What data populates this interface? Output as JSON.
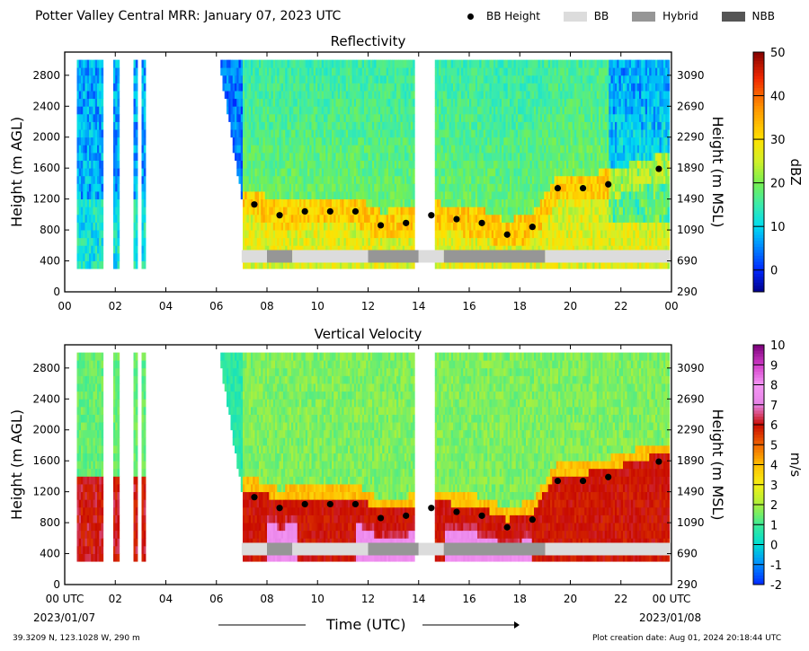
{
  "page": {
    "title": "Potter Valley Central MRR:  January 07, 2023 UTC",
    "legend": [
      {
        "label": "BB Height",
        "kind": "marker",
        "color": "#000000"
      },
      {
        "label": "BB",
        "kind": "box",
        "color": "#dcdcdc"
      },
      {
        "label": "Hybrid",
        "kind": "box",
        "color": "#969696"
      },
      {
        "label": "NBB",
        "kind": "box",
        "color": "#555555"
      }
    ],
    "xlabel": "Time (UTC)",
    "x_start_label": "00 UTC",
    "x_start_date": "2023/01/07",
    "x_end_label": "00 UTC",
    "x_end_date": "2023/01/08",
    "footer_left": "39.3209 N, 123.1028 W, 290 m",
    "footer_right": "Plot creation date: Aug 01, 2024 20:18:44 UTC"
  },
  "chart_data": [
    {
      "type": "heatmap",
      "title": "Reflectivity",
      "ylabel": "Height (m AGL)",
      "y2label": "Height (m MSL)",
      "colorbar_label": "dBZ",
      "colorbar_ticks": [
        "50",
        "40",
        "30",
        "20",
        "10",
        "0"
      ],
      "colorbar_range": [
        -5,
        50
      ],
      "xlim": [
        0,
        24
      ],
      "ylim": [
        0,
        3100
      ],
      "xticks": [
        "00",
        "02",
        "04",
        "06",
        "08",
        "10",
        "12",
        "14",
        "16",
        "18",
        "20",
        "22",
        "00"
      ],
      "yticks": [
        "0",
        "400",
        "800",
        "1200",
        "1600",
        "2000",
        "2400",
        "2800"
      ],
      "y2ticks": [
        "290",
        "690",
        "1090",
        "1490",
        "1890",
        "2290",
        "2690",
        "3090"
      ],
      "bb_height": {
        "x": [
          7.5,
          8.5,
          9.5,
          10.5,
          11.5,
          12.5,
          13.5,
          14.5,
          15.5,
          16.5,
          17.5,
          18.5,
          19.5,
          20.5,
          21.5,
          23.5
        ],
        "y": [
          1130,
          990,
          1040,
          1040,
          1040,
          860,
          890,
          990,
          940,
          890,
          740,
          840,
          1340,
          1340,
          1390,
          1590
        ]
      },
      "bb_classification": [
        {
          "start": 7.0,
          "end": 8.0,
          "class": "BB"
        },
        {
          "start": 8.0,
          "end": 9.0,
          "class": "Hybrid"
        },
        {
          "start": 9.0,
          "end": 12.0,
          "class": "BB"
        },
        {
          "start": 12.0,
          "end": 14.0,
          "class": "Hybrid"
        },
        {
          "start": 14.0,
          "end": 15.0,
          "class": "BB"
        },
        {
          "start": 15.0,
          "end": 19.0,
          "class": "Hybrid"
        },
        {
          "start": 19.0,
          "end": 24.0,
          "class": "BB"
        }
      ]
    },
    {
      "type": "heatmap",
      "title": "Vertical Velocity",
      "ylabel": "Height (m AGL)",
      "y2label": "Height (m MSL)",
      "colorbar_label": "m/s",
      "colorbar_ticks": [
        "10",
        "9",
        "8",
        "7",
        "6",
        "5",
        "4",
        "3",
        "2",
        "1",
        "0",
        "-1",
        "-2"
      ],
      "colorbar_range": [
        -2,
        10
      ],
      "xlim": [
        0,
        24
      ],
      "ylim": [
        0,
        3100
      ],
      "xticks": [
        "00 UTC",
        "02",
        "04",
        "06",
        "08",
        "10",
        "12",
        "14",
        "16",
        "18",
        "20",
        "22",
        "00 UTC"
      ],
      "yticks": [
        "0",
        "400",
        "800",
        "1200",
        "1600",
        "2000",
        "2400",
        "2800"
      ],
      "y2ticks": [
        "290",
        "690",
        "1090",
        "1490",
        "1890",
        "2290",
        "2690",
        "3090"
      ],
      "bb_height": {
        "x": [
          7.5,
          8.5,
          9.5,
          10.5,
          11.5,
          12.5,
          13.5,
          14.5,
          15.5,
          16.5,
          17.5,
          18.5,
          19.5,
          20.5,
          21.5,
          23.5
        ],
        "y": [
          1130,
          990,
          1040,
          1040,
          1040,
          860,
          890,
          990,
          940,
          890,
          740,
          840,
          1340,
          1340,
          1390,
          1590
        ]
      },
      "bb_classification": [
        {
          "start": 7.0,
          "end": 8.0,
          "class": "BB"
        },
        {
          "start": 8.0,
          "end": 9.0,
          "class": "Hybrid"
        },
        {
          "start": 9.0,
          "end": 12.0,
          "class": "BB"
        },
        {
          "start": 12.0,
          "end": 14.0,
          "class": "Hybrid"
        },
        {
          "start": 14.0,
          "end": 15.0,
          "class": "BB"
        },
        {
          "start": 15.0,
          "end": 19.0,
          "class": "Hybrid"
        },
        {
          "start": 19.0,
          "end": 24.0,
          "class": "BB"
        }
      ]
    }
  ]
}
